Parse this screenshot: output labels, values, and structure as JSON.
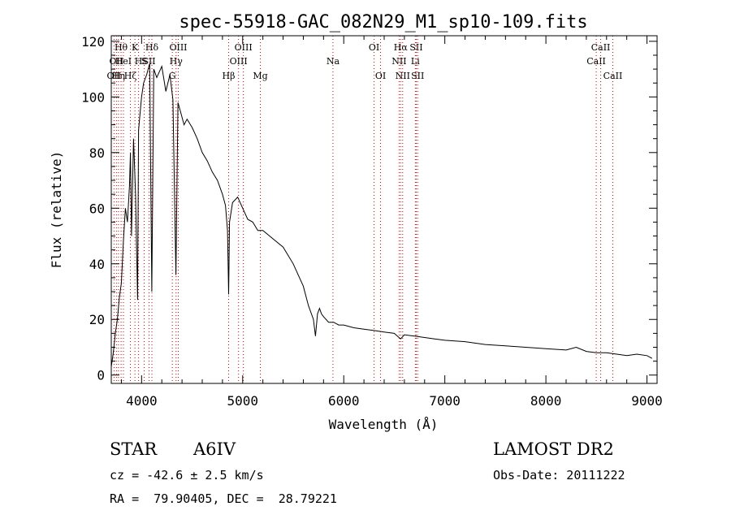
{
  "chart_data": {
    "type": "line",
    "title": "spec-55918-GAC_082N29_M1_sp10-109.fits",
    "xlabel": "Wavelength (Å)",
    "ylabel": "Flux (relative)",
    "xlim": [
      3700,
      9100
    ],
    "ylim": [
      -3,
      122
    ],
    "x_ticks": [
      4000,
      5000,
      6000,
      7000,
      8000,
      9000
    ],
    "y_ticks": [
      0,
      20,
      40,
      60,
      80,
      100,
      120
    ],
    "grid": false,
    "series": [
      {
        "x": [
          3700,
          3720,
          3740,
          3760,
          3780,
          3800,
          3820,
          3840,
          3860,
          3880,
          3890,
          3900,
          3920,
          3940,
          3960,
          3970,
          3980,
          4000,
          4020,
          4050,
          4080,
          4101,
          4120,
          4150,
          4200,
          4240,
          4280,
          4310,
          4340,
          4360,
          4390,
          4420,
          4450,
          4500,
          4550,
          4600,
          4650,
          4700,
          4750,
          4800,
          4830,
          4850,
          4861,
          4870,
          4900,
          4950,
          5000,
          5050,
          5100,
          5150,
          5200,
          5300,
          5400,
          5500,
          5600,
          5650,
          5700,
          5720,
          5740,
          5760,
          5780,
          5800,
          5850,
          5900,
          5950,
          6000,
          6100,
          6200,
          6300,
          6400,
          6500,
          6562,
          6600,
          6700,
          6800,
          6900,
          7000,
          7200,
          7400,
          7600,
          7800,
          8000,
          8200,
          8300,
          8400,
          8500,
          8600,
          8700,
          8800,
          8900,
          9000,
          9050
        ],
        "y": [
          3,
          8,
          15,
          20,
          28,
          33,
          48,
          60,
          55,
          68,
          80,
          50,
          85,
          65,
          27,
          88,
          92,
          100,
          105,
          108,
          112,
          30,
          110,
          107,
          111,
          102,
          108,
          99,
          36,
          98,
          94,
          90,
          92,
          89,
          85,
          80,
          77,
          73,
          70,
          65,
          61,
          52,
          29,
          55,
          62,
          64,
          60,
          56,
          55,
          52,
          52,
          49,
          46,
          40,
          32,
          25,
          20,
          14,
          22,
          24,
          22,
          21,
          19,
          19,
          18,
          18,
          17,
          16.5,
          16,
          15.5,
          15,
          13,
          14.5,
          14,
          13.5,
          13,
          12.5,
          12,
          11,
          10.5,
          10,
          9.5,
          9,
          10,
          8.5,
          8,
          8,
          7.5,
          7,
          7.5,
          7,
          6
        ]
      }
    ],
    "lines": [
      {
        "wavelength": 3727,
        "labels": [
          {
            "text": "OII",
            "row": 3
          }
        ]
      },
      {
        "wavelength": 3751,
        "labels": [
          {
            "text": "OII",
            "row": 2
          }
        ]
      },
      {
        "wavelength": 3771,
        "labels": [
          {
            "text": "Hη",
            "row": 3
          }
        ]
      },
      {
        "wavelength": 3797,
        "labels": [
          {
            "text": "Hθ",
            "row": 1
          }
        ]
      },
      {
        "wavelength": 3820,
        "labels": [
          {
            "text": "HeI",
            "row": 2
          }
        ]
      },
      {
        "wavelength": 3889,
        "labels": [
          {
            "text": "Hζ",
            "row": 3
          }
        ]
      },
      {
        "wavelength": 3934,
        "labels": [
          {
            "text": "K",
            "row": 1
          }
        ]
      },
      {
        "wavelength": 3970,
        "labels": [
          {
            "text": "H",
            "row": 2
          }
        ]
      },
      {
        "wavelength": 4026,
        "labels": [
          {
            "text": "S",
            "row": 2
          }
        ]
      },
      {
        "wavelength": 4074,
        "labels": [
          {
            "text": "SII",
            "row": 2
          }
        ]
      },
      {
        "wavelength": 4102,
        "labels": [
          {
            "text": "Hδ",
            "row": 1
          }
        ]
      },
      {
        "wavelength": 4304,
        "labels": [
          {
            "text": "G",
            "row": 3
          }
        ]
      },
      {
        "wavelength": 4341,
        "labels": [
          {
            "text": "Hγ",
            "row": 2
          }
        ]
      },
      {
        "wavelength": 4363,
        "labels": [
          {
            "text": "OIII",
            "row": 1
          }
        ]
      },
      {
        "wavelength": 4861,
        "labels": [
          {
            "text": "Hβ",
            "row": 3
          }
        ]
      },
      {
        "wavelength": 4959,
        "labels": [
          {
            "text": "OIII",
            "row": 2
          }
        ]
      },
      {
        "wavelength": 5007,
        "labels": [
          {
            "text": "OIII",
            "row": 1
          }
        ]
      },
      {
        "wavelength": 5175,
        "labels": [
          {
            "text": "Mg",
            "row": 3
          }
        ]
      },
      {
        "wavelength": 5893,
        "labels": [
          {
            "text": "Na",
            "row": 2
          }
        ]
      },
      {
        "wavelength": 6300,
        "labels": [
          {
            "text": "OI",
            "row": 1
          }
        ]
      },
      {
        "wavelength": 6364,
        "labels": [
          {
            "text": "OI",
            "row": 3
          }
        ]
      },
      {
        "wavelength": 6548,
        "labels": [
          {
            "text": "NII",
            "row": 2
          }
        ]
      },
      {
        "wavelength": 6563,
        "labels": [
          {
            "text": "Hα",
            "row": 1
          }
        ]
      },
      {
        "wavelength": 6583,
        "labels": [
          {
            "text": "NII",
            "row": 3
          }
        ]
      },
      {
        "wavelength": 6708,
        "labels": [
          {
            "text": "Li",
            "row": 2
          }
        ]
      },
      {
        "wavelength": 6717,
        "labels": [
          {
            "text": "SII",
            "row": 1
          }
        ]
      },
      {
        "wavelength": 6731,
        "labels": [
          {
            "text": "SII",
            "row": 3
          }
        ]
      },
      {
        "wavelength": 8498,
        "labels": [
          {
            "text": "CaII",
            "row": 2
          }
        ]
      },
      {
        "wavelength": 8542,
        "labels": [
          {
            "text": "CaII",
            "row": 1
          }
        ]
      },
      {
        "wavelength": 8662,
        "labels": [
          {
            "text": "CaII",
            "row": 3
          }
        ]
      }
    ]
  },
  "info": {
    "class_label": "STAR",
    "subclass": "A6IV",
    "survey": "LAMOST DR2",
    "cz": "cz = -42.6 ± 2.5 km/s",
    "obs_date": "Obs-Date: 20111222",
    "coords": "RA =  79.90405, DEC =  28.79221"
  }
}
